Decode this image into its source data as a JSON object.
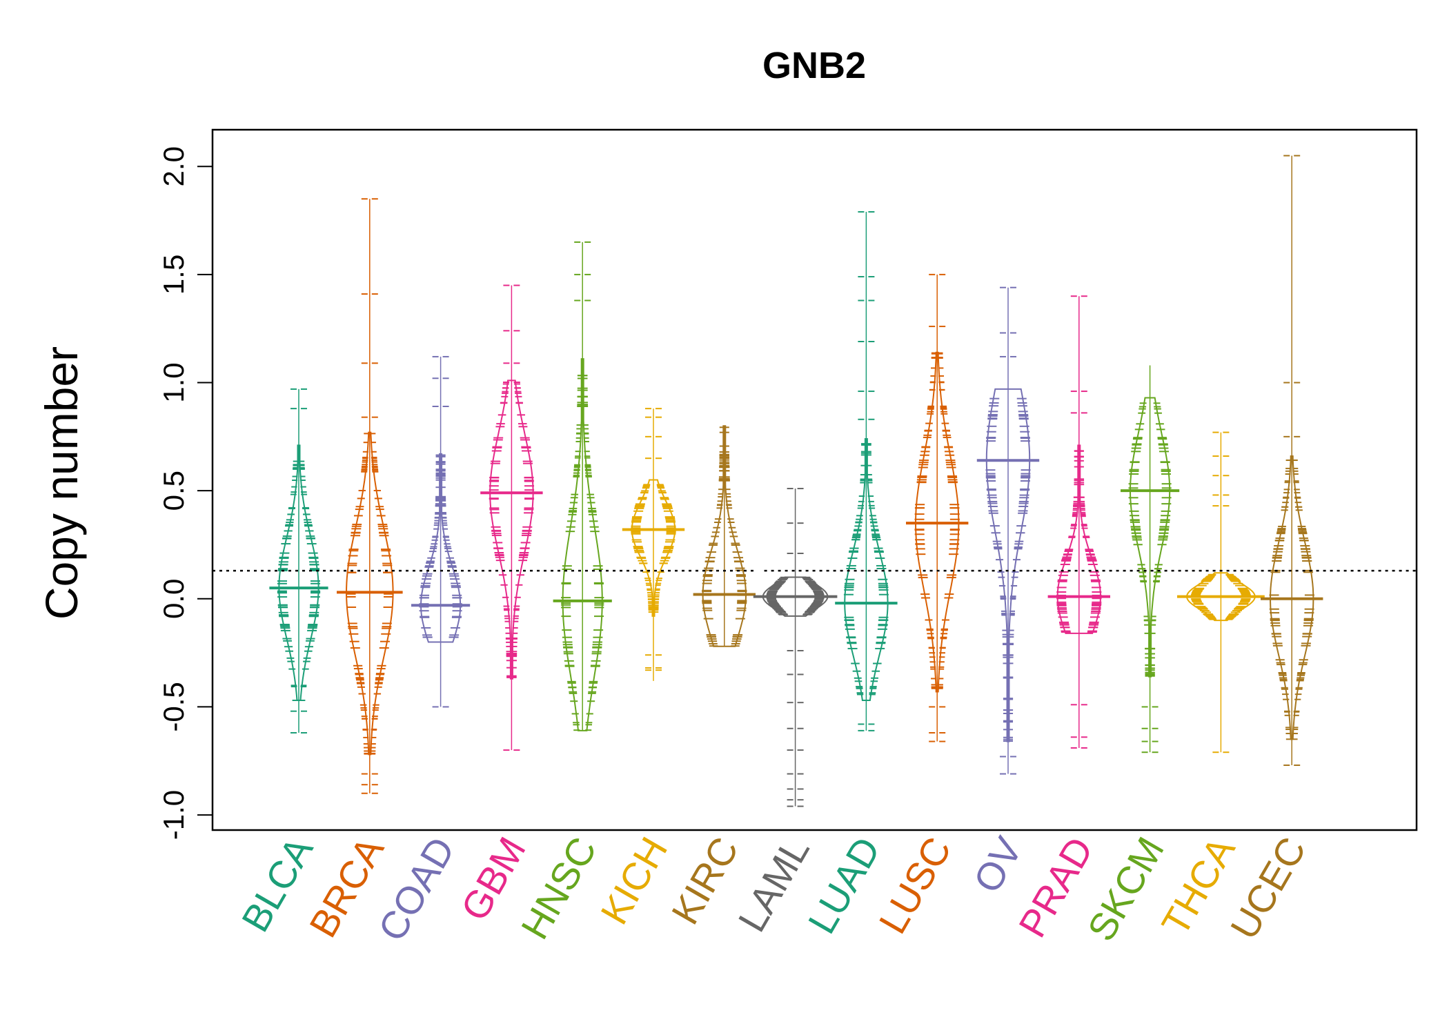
{
  "chart_data": {
    "type": "beanplot",
    "title": "GNB2",
    "xlabel": "",
    "ylabel": "Copy number",
    "ylim": [
      -1.07,
      2.17
    ],
    "yticks": [
      -1.0,
      -0.5,
      0.0,
      0.5,
      1.0,
      1.5,
      2.0
    ],
    "ytick_labels": [
      "-1.0",
      "-0.5",
      "0.0",
      "0.5",
      "1.0",
      "1.5",
      "2.0"
    ],
    "reference_line": 0.13,
    "categories": [
      "BLCA",
      "BRCA",
      "COAD",
      "GBM",
      "HNSC",
      "KICH",
      "KIRC",
      "LAML",
      "LUAD",
      "LUSC",
      "OV",
      "PRAD",
      "SKCM",
      "THCA",
      "UCEC"
    ],
    "series": [
      {
        "category": "BLCA",
        "color": "#1B9E77",
        "median": 0.05,
        "range": [
          -0.62,
          0.97
        ],
        "core": [
          -0.47,
          0.71
        ],
        "width": 0.55,
        "outliers": [
          0.97,
          0.88,
          -0.52,
          -0.62
        ]
      },
      {
        "category": "BRCA",
        "color": "#D95F02",
        "median": 0.03,
        "range": [
          -0.9,
          1.85
        ],
        "core": [
          -0.72,
          0.77
        ],
        "width": 0.65,
        "outliers": [
          1.85,
          1.41,
          1.09,
          0.84,
          -0.81,
          -0.86,
          -0.9
        ]
      },
      {
        "category": "COAD",
        "color": "#7570B3",
        "median": -0.03,
        "range": [
          -0.5,
          1.12
        ],
        "core": [
          -0.2,
          0.67
        ],
        "width": 0.55,
        "outliers": [
          1.12,
          1.02,
          0.89,
          -0.5
        ]
      },
      {
        "category": "GBM",
        "color": "#E7298A",
        "median": 0.49,
        "range": [
          -0.7,
          1.45
        ],
        "core": [
          -0.37,
          1.01
        ],
        "width": 0.6,
        "outliers": [
          1.45,
          1.24,
          1.09,
          -0.7
        ]
      },
      {
        "category": "HNSC",
        "color": "#66A61E",
        "median": -0.01,
        "range": [
          -0.61,
          1.65
        ],
        "core": [
          -0.61,
          1.11
        ],
        "width": 0.55,
        "outliers": [
          1.65,
          1.5,
          1.38
        ]
      },
      {
        "category": "KICH",
        "color": "#E6AB02",
        "median": 0.32,
        "range": [
          -0.38,
          0.88
        ],
        "core": [
          -0.08,
          0.55
        ],
        "width": 0.6,
        "outliers": [
          0.88,
          0.84,
          0.75,
          0.65,
          -0.26,
          -0.32,
          -0.33
        ]
      },
      {
        "category": "KIRC",
        "color": "#A6761D",
        "median": 0.02,
        "range": [
          -0.22,
          0.8
        ],
        "core": [
          -0.22,
          0.8
        ],
        "width": 0.6,
        "outliers": []
      },
      {
        "category": "LAML",
        "color": "#666666",
        "median": 0.01,
        "range": [
          -0.96,
          0.51
        ],
        "core": [
          -0.08,
          0.1
        ],
        "width": 0.9,
        "outliers": [
          0.51,
          0.35,
          0.21,
          -0.24,
          -0.35,
          -0.48,
          -0.6,
          -0.7,
          -0.81,
          -0.88,
          -0.93,
          -0.96
        ]
      },
      {
        "category": "LUAD",
        "color": "#1B9E77",
        "median": -0.02,
        "range": [
          -0.61,
          1.79
        ],
        "core": [
          -0.47,
          0.74
        ],
        "width": 0.6,
        "outliers": [
          1.79,
          1.49,
          1.38,
          1.19,
          0.96,
          0.83,
          -0.58,
          -0.61
        ]
      },
      {
        "category": "LUSC",
        "color": "#D95F02",
        "median": 0.35,
        "range": [
          -0.66,
          1.5
        ],
        "core": [
          -0.43,
          1.14
        ],
        "width": 0.6,
        "outliers": [
          1.5,
          1.26,
          -0.5,
          -0.62,
          -0.66
        ]
      },
      {
        "category": "OV",
        "color": "#7570B3",
        "median": 0.64,
        "range": [
          -0.81,
          1.44
        ],
        "core": [
          -0.66,
          0.97
        ],
        "width": 0.6,
        "outliers": [
          1.44,
          1.23,
          1.12,
          -0.73,
          -0.81
        ]
      },
      {
        "category": "PRAD",
        "color": "#E7298A",
        "median": 0.01,
        "range": [
          -0.69,
          1.4
        ],
        "core": [
          -0.16,
          0.71
        ],
        "width": 0.6,
        "outliers": [
          1.4,
          0.96,
          0.86,
          -0.49,
          -0.64,
          -0.69
        ]
      },
      {
        "category": "SKCM",
        "color": "#66A61E",
        "median": 0.5,
        "range": [
          -0.71,
          1.08
        ],
        "core": [
          -0.36,
          0.93
        ],
        "width": 0.55,
        "outliers": [
          -0.5,
          -0.6,
          -0.66,
          -0.71
        ]
      },
      {
        "category": "THCA",
        "color": "#E6AB02",
        "median": 0.01,
        "range": [
          -0.71,
          0.77
        ],
        "core": [
          -0.1,
          0.12
        ],
        "width": 0.95,
        "outliers": [
          0.77,
          0.66,
          0.57,
          0.48,
          0.43,
          -0.71
        ]
      },
      {
        "category": "UCEC",
        "color": "#A6761D",
        "median": 0.0,
        "range": [
          -0.77,
          2.05
        ],
        "core": [
          -0.65,
          0.66
        ],
        "width": 0.6,
        "outliers": [
          2.05,
          1.0,
          0.75,
          -0.77
        ]
      }
    ]
  }
}
